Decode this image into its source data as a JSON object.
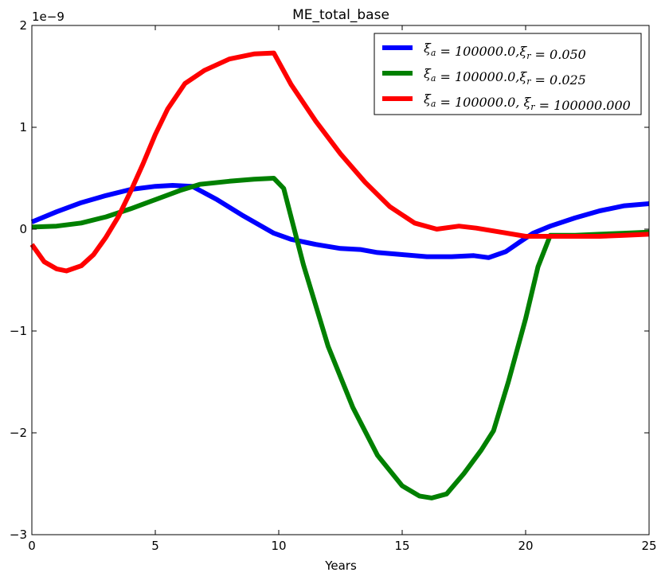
{
  "chart_data": {
    "type": "line",
    "title": "ME_total_base",
    "xlabel": "Years",
    "ylabel": "",
    "xlim": [
      0,
      25
    ],
    "ylim": [
      -3,
      2
    ],
    "x_ticks": [
      0,
      5,
      10,
      15,
      20,
      25
    ],
    "x_tick_labels": [
      "0",
      "5",
      "10",
      "15",
      "20",
      "25"
    ],
    "y_ticks": [
      -3,
      -2,
      -1,
      0,
      1,
      2
    ],
    "y_tick_labels": [
      "−3",
      "−2",
      "−1",
      "0",
      "1",
      "2"
    ],
    "y_scale_label": "1e−9",
    "grid": false,
    "legend_position": "top-right",
    "series": [
      {
        "name": "ξ_a = 100000.0,ξ_r = 0.050",
        "color": "#0000ff",
        "x": [
          0,
          1,
          2,
          3,
          4,
          5,
          5.7,
          6.5,
          7.5,
          8.5,
          9.8,
          10.5,
          11.5,
          12.5,
          13.3,
          14,
          15,
          16,
          17,
          17.9,
          18.5,
          19.2,
          19.8,
          20.3,
          21,
          22,
          23,
          24,
          25
        ],
        "values": [
          0.07,
          0.17,
          0.26,
          0.33,
          0.39,
          0.42,
          0.43,
          0.42,
          0.29,
          0.14,
          -0.04,
          -0.1,
          -0.15,
          -0.19,
          -0.2,
          -0.23,
          -0.25,
          -0.27,
          -0.27,
          -0.26,
          -0.28,
          -0.22,
          -0.12,
          -0.04,
          0.03,
          0.11,
          0.18,
          0.23,
          0.25
        ]
      },
      {
        "name": "ξ_a = 100000.0,ξ_r = 0.025",
        "color": "#008000",
        "x": [
          0,
          1,
          2,
          3,
          4,
          5,
          6,
          6.8,
          8,
          9,
          9.8,
          10.2,
          11,
          12,
          13,
          14,
          15,
          15.7,
          16.2,
          16.8,
          17.5,
          18.2,
          18.7,
          19.3,
          20,
          20.5,
          21,
          22,
          23,
          24,
          25
        ],
        "values": [
          0.02,
          0.03,
          0.06,
          0.12,
          0.2,
          0.29,
          0.38,
          0.44,
          0.47,
          0.49,
          0.5,
          0.4,
          -0.35,
          -1.15,
          -1.75,
          -2.22,
          -2.52,
          -2.62,
          -2.64,
          -2.6,
          -2.4,
          -2.17,
          -1.98,
          -1.5,
          -0.88,
          -0.37,
          -0.06,
          -0.06,
          -0.05,
          -0.04,
          -0.03
        ]
      },
      {
        "name": "ξ_a = 100000.0, ξ_r = 100000.000",
        "color": "#ff0000",
        "x": [
          0,
          0.5,
          1,
          1.4,
          2,
          2.5,
          3,
          3.5,
          4,
          4.5,
          5,
          5.5,
          6.2,
          7,
          8,
          9,
          9.8,
          10.5,
          11.5,
          12.5,
          13.5,
          14.5,
          15.5,
          16.4,
          17.3,
          18,
          19,
          20,
          21,
          22,
          23,
          24,
          25
        ],
        "values": [
          -0.15,
          -0.32,
          -0.39,
          -0.41,
          -0.36,
          -0.25,
          -0.08,
          0.12,
          0.37,
          0.64,
          0.93,
          1.18,
          1.43,
          1.56,
          1.67,
          1.72,
          1.73,
          1.42,
          1.06,
          0.74,
          0.46,
          0.22,
          0.06,
          0.0,
          0.03,
          0.01,
          -0.03,
          -0.07,
          -0.07,
          -0.07,
          -0.07,
          -0.06,
          -0.05
        ]
      }
    ],
    "legend_entries": [
      {
        "pre": "ξ",
        "sub": "a",
        "mid": " = 100000.0,ξ",
        "sub2": "r",
        "post": " = 0.050"
      },
      {
        "pre": "ξ",
        "sub": "a",
        "mid": " = 100000.0,ξ",
        "sub2": "r",
        "post": " = 0.025"
      },
      {
        "pre": "ξ",
        "sub": "a",
        "mid": " = 100000.0, ξ",
        "sub2": "r",
        "post": " = 100000.000"
      }
    ]
  }
}
